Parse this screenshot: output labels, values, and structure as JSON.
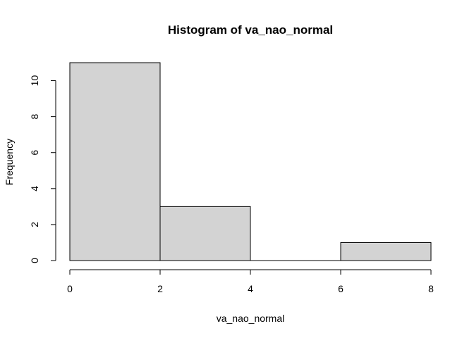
{
  "chart_data": {
    "type": "bar",
    "title": "Histogram of va_nao_normal",
    "xlabel": "va_nao_normal",
    "ylabel": "Frequency",
    "bins": [
      {
        "start": 0,
        "end": 2,
        "count": 11
      },
      {
        "start": 2,
        "end": 4,
        "count": 3
      },
      {
        "start": 4,
        "end": 6,
        "count": 0
      },
      {
        "start": 6,
        "end": 8,
        "count": 1
      }
    ],
    "xlim": [
      0,
      8
    ],
    "ylim": [
      0,
      11
    ],
    "xticks": [
      0,
      2,
      4,
      6,
      8
    ],
    "yticks": [
      0,
      2,
      4,
      6,
      8,
      10
    ],
    "grid": false,
    "colors": {
      "bar_fill": "#d3d3d3",
      "bar_stroke": "#000000",
      "background": "#ffffff"
    }
  }
}
